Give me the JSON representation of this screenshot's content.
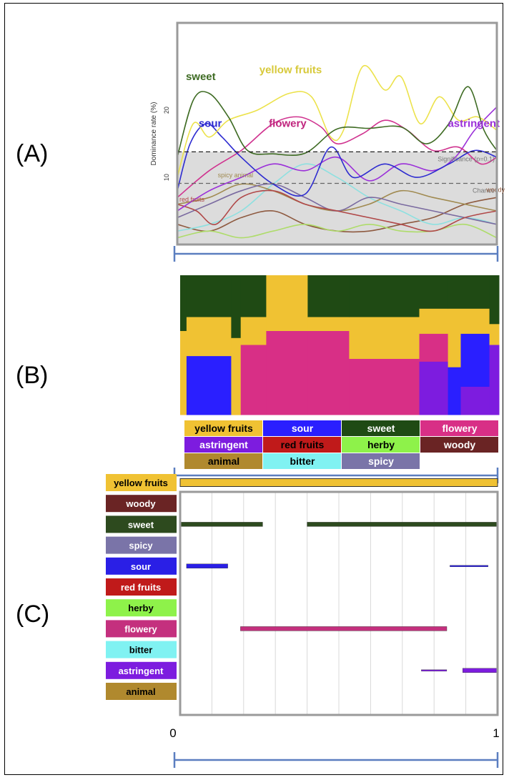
{
  "panels": {
    "a": "(A)",
    "b": "(B)",
    "c": "(C)"
  },
  "chart_data": [
    {
      "type": "line",
      "panel": "A",
      "ylabel": "Dominance rate (%)",
      "y_ticks": [
        "10",
        "20"
      ],
      "ylim": [
        0,
        33
      ],
      "xlim": [
        0,
        1
      ],
      "reference_lines": [
        {
          "label": "Significance (p=0.1)",
          "y": 13.8
        },
        {
          "label": "Chance",
          "y": 9.1
        }
      ],
      "series": [
        {
          "name": "sweet",
          "color": "#3e6b23",
          "x": [
            0,
            0.05,
            0.1,
            0.16,
            0.22,
            0.3,
            0.4,
            0.5,
            0.6,
            0.7,
            0.78,
            0.85,
            0.91,
            0.96,
            1.0
          ],
          "values": [
            13,
            21.5,
            22.5,
            19,
            14,
            13.5,
            13.6,
            17.2,
            17.3,
            17.5,
            15,
            18,
            23.5,
            17,
            14
          ]
        },
        {
          "name": "yellow fruits",
          "color": "#ece24b",
          "x": [
            0,
            0.05,
            0.1,
            0.16,
            0.25,
            0.35,
            0.42,
            0.48,
            0.52,
            0.58,
            0.65,
            0.7,
            0.76,
            0.82,
            0.88,
            0.94,
            1.0
          ],
          "values": [
            10,
            18,
            16,
            18.5,
            20,
            22.5,
            22,
            16,
            17,
            26.5,
            23,
            25,
            18,
            22,
            18.5,
            19,
            17
          ]
        },
        {
          "name": "sour",
          "color": "#2d2bd0",
          "x": [
            0,
            0.04,
            0.09,
            0.14,
            0.2,
            0.3,
            0.4,
            0.48,
            0.55,
            0.65,
            0.75,
            0.85,
            0.93,
            1.0
          ],
          "values": [
            8,
            15,
            18,
            16,
            13,
            9,
            7.5,
            14.5,
            10,
            12,
            10,
            12,
            14,
            13
          ]
        },
        {
          "name": "flowery",
          "color": "#d0338f",
          "x": [
            0,
            0.1,
            0.2,
            0.3,
            0.38,
            0.45,
            0.5,
            0.58,
            0.65,
            0.72,
            0.8,
            0.88,
            0.95,
            1.0
          ],
          "values": [
            7,
            11,
            14,
            18,
            19,
            17.5,
            15,
            16.5,
            18.5,
            17,
            14,
            14.5,
            12,
            13
          ]
        },
        {
          "name": "astringent",
          "color": "#9b30d9",
          "x": [
            0,
            0.1,
            0.2,
            0.3,
            0.4,
            0.5,
            0.6,
            0.7,
            0.8,
            0.87,
            0.93,
            1.0
          ],
          "values": [
            5,
            8,
            10,
            12,
            11,
            13,
            9.5,
            12,
            11,
            13,
            17,
            20.5
          ]
        },
        {
          "name": "red fruits",
          "color": "#b04848",
          "x": [
            0,
            0.06,
            0.12,
            0.2,
            0.3,
            0.4,
            0.5,
            0.6,
            0.7,
            0.8,
            0.9,
            1.0
          ],
          "values": [
            6,
            5,
            3,
            7,
            8,
            6,
            5,
            4,
            3,
            2,
            4,
            5
          ]
        },
        {
          "name": "spicy",
          "color": "#7a6aa0",
          "x": [
            0,
            0.1,
            0.2,
            0.3,
            0.4,
            0.5,
            0.6,
            0.7,
            0.8,
            0.9,
            1.0
          ],
          "values": [
            4,
            6,
            8,
            9,
            7,
            5,
            7,
            6,
            5,
            4,
            3
          ]
        },
        {
          "name": "animal",
          "color": "#a08a50",
          "x": [
            0,
            0.1,
            0.2,
            0.3,
            0.4,
            0.5,
            0.6,
            0.7,
            0.8,
            0.9,
            1.0
          ],
          "values": [
            6,
            7,
            9,
            8,
            6,
            5,
            6,
            8,
            7,
            6,
            5
          ]
        },
        {
          "name": "bitter",
          "color": "#8de0e0",
          "x": [
            0,
            0.1,
            0.2,
            0.3,
            0.4,
            0.5,
            0.6,
            0.7,
            0.8,
            0.9,
            1.0
          ],
          "values": [
            2,
            3,
            5,
            9,
            12,
            10,
            7,
            5,
            3,
            4,
            3
          ]
        },
        {
          "name": "herby",
          "color": "#aedc6a",
          "x": [
            0,
            0.1,
            0.2,
            0.3,
            0.4,
            0.5,
            0.6,
            0.7,
            0.8,
            0.9,
            1.0
          ],
          "values": [
            1,
            2,
            1,
            2,
            3,
            2,
            3,
            2,
            2,
            3,
            1
          ]
        },
        {
          "name": "woody",
          "color": "#8e5a40",
          "x": [
            0,
            0.1,
            0.2,
            0.3,
            0.4,
            0.5,
            0.6,
            0.7,
            0.8,
            0.9,
            1.0
          ],
          "values": [
            3,
            2,
            4,
            5,
            3,
            2,
            2,
            3,
            4,
            6,
            7
          ]
        }
      ],
      "annotations": [
        {
          "text": "sweet",
          "x": 0.02,
          "y": 24.5,
          "color": "#3e6b23"
        },
        {
          "text": "yellow fruits",
          "x": 0.25,
          "y": 25.5,
          "color": "#d7c93a"
        },
        {
          "text": "sour",
          "x": 0.06,
          "y": 17.5,
          "color": "#2d2bd0"
        },
        {
          "text": "flowery",
          "x": 0.28,
          "y": 17.5,
          "color": "#c0257e"
        },
        {
          "text": "astringent",
          "x": 0.84,
          "y": 17.5,
          "color": "#9b30d9"
        },
        {
          "text": "spicy  animal",
          "x": 0.12,
          "y": 10,
          "color": "#a08a50"
        },
        {
          "text": "red fruits",
          "x": 0.0,
          "y": 6.4,
          "color": "#b04848"
        },
        {
          "text": "woody",
          "x": 0.96,
          "y": 7.8,
          "color": "#8e5a40"
        }
      ]
    },
    {
      "type": "area",
      "panel": "B",
      "xlim": [
        0,
        1
      ],
      "order": [
        "sweet",
        "yellow fruits",
        "flowery",
        "sour",
        "astringent"
      ],
      "segments": [
        {
          "x0": 0.0,
          "x1": 0.02,
          "values": {
            "sweet": 40,
            "yellow fruits": 60
          }
        },
        {
          "x0": 0.02,
          "x1": 0.16,
          "values": {
            "sweet": 30,
            "yellow fruits": 28,
            "sour": 42
          }
        },
        {
          "x0": 0.16,
          "x1": 0.19,
          "values": {
            "sweet": 45,
            "yellow fruits": 55
          }
        },
        {
          "x0": 0.19,
          "x1": 0.27,
          "values": {
            "sweet": 30,
            "yellow fruits": 20,
            "flowery": 50
          }
        },
        {
          "x0": 0.27,
          "x1": 0.4,
          "values": {
            "yellow fruits": 40,
            "flowery": 60
          }
        },
        {
          "x0": 0.4,
          "x1": 0.53,
          "values": {
            "sweet": 30,
            "yellow fruits": 10,
            "flowery": 60
          }
        },
        {
          "x0": 0.53,
          "x1": 0.75,
          "values": {
            "sweet": 30,
            "yellow fruits": 30,
            "flowery": 40
          }
        },
        {
          "x0": 0.75,
          "x1": 0.84,
          "values": {
            "sweet": 24,
            "yellow fruits": 18,
            "flowery": 20,
            "astringent": 38
          }
        },
        {
          "x0": 0.84,
          "x1": 0.88,
          "values": {
            "sweet": 24,
            "yellow fruits": 42,
            "sour": 34
          }
        },
        {
          "x0": 0.88,
          "x1": 0.97,
          "values": {
            "sweet": 24,
            "yellow fruits": 18,
            "astringent": 20,
            "sour": 38
          }
        },
        {
          "x0": 0.97,
          "x1": 1.0,
          "values": {
            "sweet": 35,
            "yellow fruits": 15,
            "astringent": 50
          }
        }
      ],
      "legend": [
        {
          "name": "yellow fruits",
          "color": "#f0c233",
          "text_color": "#000000"
        },
        {
          "name": "sour",
          "color": "#2a1fff",
          "text_color": "#ffffff"
        },
        {
          "name": "sweet",
          "color": "#1f4a14",
          "text_color": "#ffffff"
        },
        {
          "name": "flowery",
          "color": "#d82f86",
          "text_color": "#ffffff"
        },
        {
          "name": "astringent",
          "color": "#7d1cdf",
          "text_color": "#ffffff"
        },
        {
          "name": "red fruits",
          "color": "#c01a1a",
          "text_color": "#000000"
        },
        {
          "name": "herby",
          "color": "#8ef24a",
          "text_color": "#000000"
        },
        {
          "name": "woody",
          "color": "#6a2424",
          "text_color": "#ffffff"
        },
        {
          "name": "animal",
          "color": "#b0892e",
          "text_color": "#000000"
        },
        {
          "name": "bitter",
          "color": "#80f2f2",
          "text_color": "#000000"
        },
        {
          "name": "spicy",
          "color": "#7a74a8",
          "text_color": "#ffffff"
        }
      ]
    },
    {
      "type": "bar",
      "panel": "C",
      "xlim": [
        0,
        1
      ],
      "x_ticks": [
        "0",
        "1"
      ],
      "categories": [
        {
          "name": "yellow fruits",
          "color": "#f0c233",
          "text_color": "#000000",
          "intervals": [
            [
              0.0,
              1.0
            ]
          ]
        },
        {
          "name": "woody",
          "color": "#6a2424",
          "text_color": "#ffffff",
          "intervals": []
        },
        {
          "name": "sweet",
          "color": "#2d4a1e",
          "text_color": "#ffffff",
          "intervals": [
            [
              0.0,
              0.26
            ],
            [
              0.4,
              1.0
            ]
          ]
        },
        {
          "name": "spicy",
          "color": "#7a74a8",
          "text_color": "#ffffff",
          "intervals": []
        },
        {
          "name": "sour",
          "color": "#2a1fe6",
          "text_color": "#ffffff",
          "intervals": [
            [
              0.02,
              0.15
            ],
            [
              0.85,
              0.97
            ]
          ]
        },
        {
          "name": "red fruits",
          "color": "#c01a1a",
          "text_color": "#ffffff",
          "intervals": []
        },
        {
          "name": "herby",
          "color": "#8ef24a",
          "text_color": "#000000",
          "intervals": []
        },
        {
          "name": "flowery",
          "color": "#c4307e",
          "text_color": "#ffffff",
          "intervals": [
            [
              0.19,
              0.84
            ]
          ]
        },
        {
          "name": "bitter",
          "color": "#80f2f2",
          "text_color": "#000000",
          "intervals": []
        },
        {
          "name": "astringent",
          "color": "#7d1cdf",
          "text_color": "#ffffff",
          "intervals": [
            [
              0.76,
              0.84
            ],
            [
              0.89,
              1.0
            ]
          ]
        },
        {
          "name": "animal",
          "color": "#b0892e",
          "text_color": "#000000",
          "intervals": []
        }
      ]
    }
  ]
}
